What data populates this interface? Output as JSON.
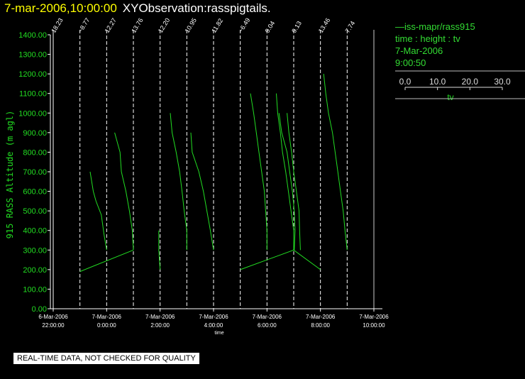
{
  "header": {
    "datetime": "7-mar-2006,10:00:00",
    "observation": "XYObservation:rasspigtails."
  },
  "legend": {
    "series_line": "iss-mapr/rass915",
    "variables": "time : height : tv",
    "date": "7-Mar-2006",
    "time": "9:00:50",
    "scale_ticks": [
      "0.0",
      "10.0",
      "20.0",
      "30.0"
    ],
    "scale_label": "tv"
  },
  "footer": {
    "disclaimer": "REAL-TIME DATA, NOT CHECKED FOR QUALITY"
  },
  "colors": {
    "trace": "#22dd22",
    "axis": "#ffffff",
    "ylabel": "#22dd22",
    "title_date": "#ffff00"
  },
  "chart_data": {
    "type": "line",
    "ylabel": "915 RASS Altitude (m agl)",
    "xlabel": "time",
    "ylim": [
      0,
      1400
    ],
    "xlim": [
      -2,
      10
    ],
    "yticks": [
      "0.00",
      "100.00",
      "200.00",
      "300.00",
      "400.00",
      "500.00",
      "600.00",
      "700.00",
      "800.00",
      "900.00",
      "1000.00",
      "1100.00",
      "1200.00",
      "1300.00",
      "1400.00"
    ],
    "xticks": [
      {
        "h": -2,
        "date": "6-Mar-2006",
        "time": "22:00:00"
      },
      {
        "h": 0,
        "date": "7-Mar-2006",
        "time": "0:00:00"
      },
      {
        "h": 2,
        "date": "7-Mar-2006",
        "time": "2:00:00"
      },
      {
        "h": 4,
        "date": "7-Mar-2006",
        "time": "4:00:00"
      },
      {
        "h": 6,
        "date": "7-Mar-2006",
        "time": "6:00:00"
      },
      {
        "h": 8,
        "date": "7-Mar-2006",
        "time": "8:00:00"
      },
      {
        "h": 10,
        "date": "7-Mar-2006",
        "time": "10:00:00"
      }
    ],
    "baselines": [
      {
        "h": -2,
        "label": "18.23"
      },
      {
        "h": -1,
        "label": "~8.77"
      },
      {
        "h": 0,
        "label": "12.27"
      },
      {
        "h": 1,
        "label": "13.76"
      },
      {
        "h": 2,
        "label": "12.20"
      },
      {
        "h": 3,
        "label": "10.95"
      },
      {
        "h": 4,
        "label": "11.82"
      },
      {
        "h": 5,
        "label": "~6.49"
      },
      {
        "h": 6,
        "label": "9.04"
      },
      {
        "h": 7,
        "label": "9.13"
      },
      {
        "h": 8,
        "label": "13.46"
      },
      {
        "h": 9,
        "label": "7.74"
      }
    ],
    "profiles": [
      {
        "points": [
          [
            -1,
            190
          ],
          [
            1,
            300
          ]
        ]
      },
      {
        "points": [
          [
            -0.62,
            700
          ],
          [
            -0.5,
            600
          ],
          [
            -0.4,
            550
          ],
          [
            -0.2,
            480
          ],
          [
            -0.1,
            380
          ],
          [
            0,
            300
          ]
        ]
      },
      {
        "points": [
          [
            0.3,
            900
          ],
          [
            0.5,
            800
          ],
          [
            0.55,
            700
          ],
          [
            0.72,
            600
          ],
          [
            0.85,
            500
          ],
          [
            0.96,
            400
          ],
          [
            1,
            300
          ]
        ]
      },
      {
        "points": [
          [
            1.95,
            400
          ],
          [
            1.95,
            300
          ],
          [
            2,
            200
          ]
        ]
      },
      {
        "points": [
          [
            2.38,
            1000
          ],
          [
            2.45,
            900
          ],
          [
            2.6,
            800
          ],
          [
            2.73,
            700
          ],
          [
            2.82,
            600
          ],
          [
            2.9,
            500
          ],
          [
            3,
            400
          ],
          [
            3,
            300
          ]
        ]
      },
      {
        "points": [
          [
            3.15,
            900
          ],
          [
            3.2,
            800
          ],
          [
            3.45,
            700
          ],
          [
            3.62,
            600
          ],
          [
            3.75,
            500
          ],
          [
            3.88,
            400
          ],
          [
            4,
            300
          ]
        ]
      },
      {
        "points": [
          [
            5,
            200
          ],
          [
            7,
            300
          ],
          [
            8,
            200
          ]
        ]
      },
      {
        "points": [
          [
            5.38,
            1100
          ],
          [
            5.5,
            1000
          ],
          [
            5.6,
            900
          ],
          [
            5.7,
            800
          ],
          [
            5.8,
            700
          ],
          [
            5.9,
            600
          ],
          [
            5.95,
            500
          ],
          [
            6,
            400
          ],
          [
            6,
            300
          ]
        ]
      },
      {
        "points": [
          [
            6.35,
            1100
          ],
          [
            6.4,
            1000
          ],
          [
            6.5,
            900
          ],
          [
            6.58,
            800
          ],
          [
            6.7,
            700
          ],
          [
            6.8,
            600
          ],
          [
            6.9,
            500
          ],
          [
            7,
            400
          ],
          [
            7,
            300
          ]
        ]
      },
      {
        "points": [
          [
            6.45,
            1000
          ],
          [
            6.55,
            900
          ],
          [
            6.75,
            800
          ],
          [
            6.85,
            700
          ],
          [
            6.95,
            600
          ],
          [
            7.02,
            500
          ],
          [
            7.05,
            400
          ],
          [
            7.02,
            300
          ]
        ]
      },
      {
        "points": [
          [
            6.75,
            1000
          ],
          [
            6.82,
            900
          ],
          [
            6.92,
            800
          ],
          [
            7.0,
            700
          ],
          [
            7.1,
            600
          ],
          [
            7.2,
            500
          ],
          [
            7.22,
            400
          ],
          [
            7.25,
            300
          ]
        ]
      },
      {
        "points": [
          [
            8.12,
            1200
          ],
          [
            8.2,
            1100
          ],
          [
            8.3,
            1000
          ],
          [
            8.45,
            900
          ],
          [
            8.55,
            800
          ],
          [
            8.65,
            700
          ],
          [
            8.75,
            600
          ],
          [
            8.85,
            500
          ],
          [
            8.92,
            400
          ],
          [
            9,
            300
          ]
        ]
      }
    ]
  }
}
